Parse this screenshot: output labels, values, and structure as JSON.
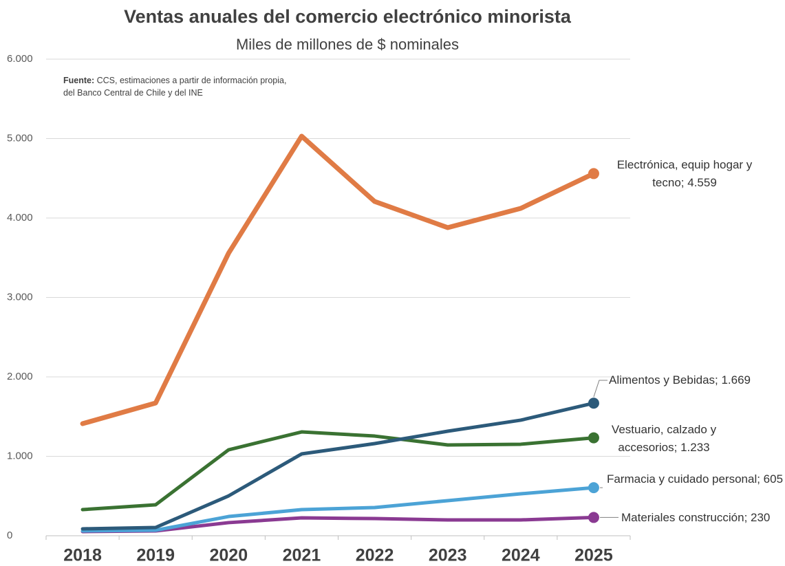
{
  "chart_data": {
    "type": "line",
    "title": "Ventas anuales del comercio electrónico minorista",
    "subtitle": "Miles de millones de $ nominales",
    "source": {
      "label": "Fuente:",
      "text": "CCS, estimaciones a partir de información propia, del Banco Central de Chile y del INE"
    },
    "categories": [
      "2018",
      "2019",
      "2020",
      "2021",
      "2022",
      "2023",
      "2024",
      "2025"
    ],
    "series": [
      {
        "name": "Electrónica, equip hogar y tecno; 4.559",
        "color": "#e07b45",
        "values": [
          1411,
          1671,
          3558,
          5030,
          4208,
          3879,
          4121,
          4559
        ]
      },
      {
        "name": "Alimentos y Bebidas; 1.669",
        "color": "#2c5a7a",
        "values": [
          87,
          104,
          502,
          1030,
          1160,
          1316,
          1455,
          1669
        ]
      },
      {
        "name": "Vestuario, calzado y accesorios; 1.233",
        "color": "#3a7232",
        "values": [
          329,
          390,
          1082,
          1307,
          1255,
          1143,
          1152,
          1233
        ]
      },
      {
        "name": "Farmacia y cuidado personal; 605",
        "color": "#4ca3d6",
        "values": [
          61,
          69,
          242,
          329,
          355,
          442,
          528,
          605
        ]
      },
      {
        "name": "Materiales construcción; 230",
        "color": "#8a3a92",
        "values": [
          52,
          61,
          165,
          225,
          216,
          199,
          199,
          230
        ]
      }
    ],
    "ylim": [
      0,
      6000
    ],
    "yticks": [
      0,
      {
        "value": 1000,
        "label": "1.000"
      },
      {
        "value": 2000,
        "label": "2.000"
      },
      {
        "value": 3000,
        "label": "3.000"
      },
      {
        "value": 4000,
        "label": "4.000"
      },
      {
        "value": 5000,
        "label": "5.000"
      },
      {
        "value": 6000,
        "label": "6.000"
      }
    ],
    "grid": true
  }
}
